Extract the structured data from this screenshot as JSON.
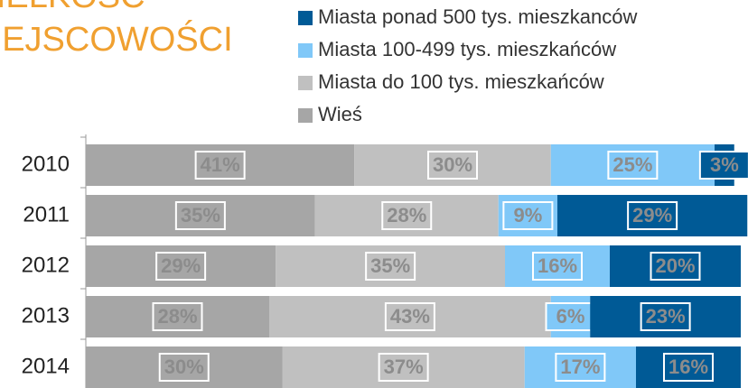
{
  "chart_data": {
    "type": "stacked-bar-horizontal",
    "title": [
      "WIELKOŚĆ",
      "MIEJSCOWOŚCI"
    ],
    "categories": [
      "2010",
      "2011",
      "2012",
      "2013",
      "2014"
    ],
    "xlim": [
      0,
      100
    ],
    "series": [
      {
        "name": "Wieś",
        "color": "#a6a6a6",
        "values": [
          41,
          35,
          29,
          28,
          30
        ],
        "value_labels": [
          "41%",
          "35%",
          "29%",
          "28%",
          "30%"
        ]
      },
      {
        "name": "Miasta do 100 tys. mieszkańców",
        "color": "#c0c0c0",
        "values": [
          30,
          28,
          35,
          43,
          37
        ],
        "value_labels": [
          "30%",
          "28%",
          "35%",
          "43%",
          "37%"
        ]
      },
      {
        "name": "Miasta 100-499 tys. mieszkańców",
        "color": "#80c8f8",
        "values": [
          25,
          9,
          16,
          6,
          17
        ],
        "value_labels": [
          "25%",
          "9%",
          "16%",
          "6%",
          "17%"
        ]
      },
      {
        "name": "Miasta ponad 500 tys. mieszkanców",
        "color": "#005a96",
        "values": [
          3,
          29,
          20,
          23,
          16
        ],
        "value_labels": [
          "3%",
          "29%",
          "20%",
          "23%",
          "16%"
        ]
      }
    ],
    "legend": "top-right"
  }
}
